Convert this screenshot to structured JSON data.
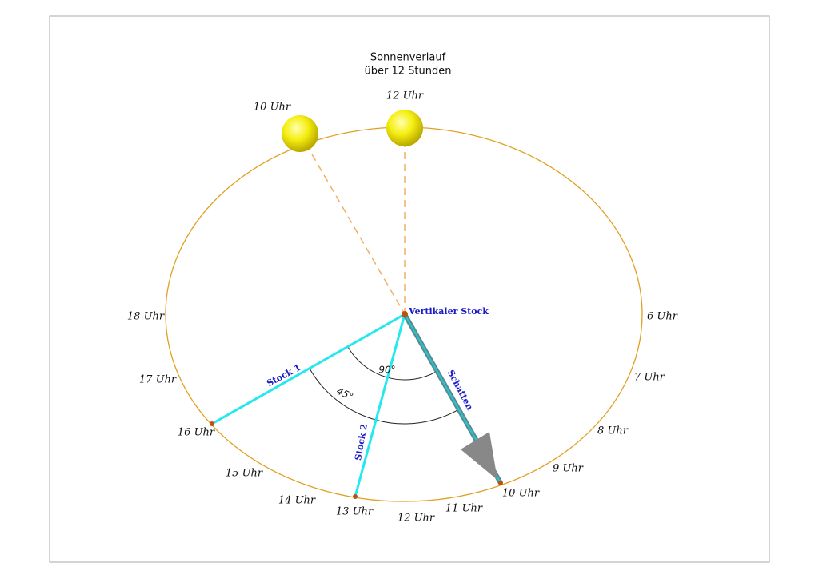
{
  "title": [
    "Sonnenverlauf",
    "über 12 Stunden"
  ],
  "suns": [
    "10 Uhr",
    "12 Uhr"
  ],
  "hours": [
    "6 Uhr",
    "7 Uhr",
    "8 Uhr",
    "9 Uhr",
    "10 Uhr",
    "11 Uhr",
    "12 Uhr",
    "13 Uhr",
    "14 Uhr",
    "15 Uhr",
    "16 Uhr",
    "17 Uhr",
    "18 Uhr"
  ],
  "center_label": "Vertikaler Stock",
  "sticks": [
    "Stock 1",
    "Stock 2"
  ],
  "shadow_label": "Schatten",
  "angles": [
    "90°",
    "45°"
  ]
}
